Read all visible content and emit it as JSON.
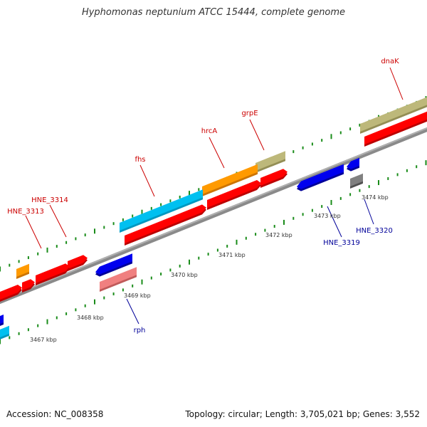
{
  "title": "Hyphomonas neptunium ATCC 15444, complete genome",
  "accession": "Accession: NC_008358",
  "topology": "Topology: circular; Length: 3,705,021 bp; Genes: 3,552",
  "colors": {
    "red": "#ff0000",
    "red_shadow": "#bb0000",
    "cyan": "#00c0f0",
    "cyan_shadow": "#0098c0",
    "orange": "#ff9a00",
    "orange_shadow": "#cc7400",
    "khaki": "#bdb87a",
    "khaki_shadow": "#938e55",
    "blue": "#0000ee",
    "blue_shadow": "#000099",
    "pink": "#f08080",
    "pink_shadow": "#c05a5a",
    "gray": "#808080",
    "gray_shadow": "#505050",
    "tick": "#1a8c1a",
    "backbone": "#999999",
    "label_top": "#cc0000",
    "label_bottom": "#000099"
  },
  "kbp_labels": [
    "3467 kbp",
    "3468 kbp",
    "3469 kbp",
    "3470 kbp",
    "3471 kbp",
    "3472 kbp",
    "3473 kbp",
    "3474 kbp"
  ],
  "gene_labels": [
    "dnaK",
    "grpE",
    "hrcA",
    "fhs",
    "HNE_3314",
    "HNE_3313",
    "HNE_3319",
    "HNE_3320",
    "rph"
  ]
}
